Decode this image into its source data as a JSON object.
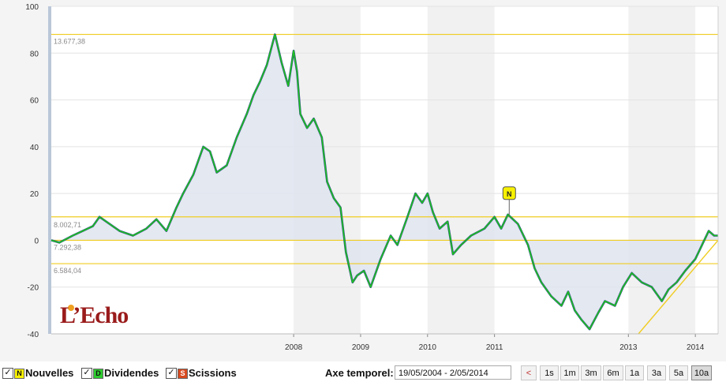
{
  "chart_data": {
    "type": "area",
    "y_ticks": [
      100,
      80,
      60,
      40,
      20,
      0,
      -20,
      -40
    ],
    "ylim": [
      -40,
      100
    ],
    "x_tick_labels": [
      {
        "label": "2008",
        "date": 2008.0
      },
      {
        "label": "2009",
        "date": 2009.0
      },
      {
        "label": "2010",
        "date": 2010.0
      },
      {
        "label": "2011",
        "date": 2011.0
      },
      {
        "label": "2013",
        "date": 2013.0
      },
      {
        "label": "2014",
        "date": 2014.0
      }
    ],
    "x_range": [
      2004.38,
      2014.34
    ],
    "reference_lines": [
      {
        "label": "13.677,38",
        "value": 88
      },
      {
        "label": "8.002,71",
        "value": 10
      },
      {
        "label": "7.292,38",
        "value": 0
      },
      {
        "label": "6.584,04",
        "value": -10
      }
    ],
    "series_points": [
      [
        2004.38,
        0
      ],
      [
        2004.5,
        -1
      ],
      [
        2004.7,
        2
      ],
      [
        2004.85,
        4
      ],
      [
        2005.0,
        6
      ],
      [
        2005.1,
        10
      ],
      [
        2005.25,
        7
      ],
      [
        2005.4,
        4
      ],
      [
        2005.6,
        2
      ],
      [
        2005.8,
        5
      ],
      [
        2005.95,
        9
      ],
      [
        2006.1,
        4
      ],
      [
        2006.25,
        14
      ],
      [
        2006.35,
        20
      ],
      [
        2006.5,
        28
      ],
      [
        2006.65,
        40
      ],
      [
        2006.75,
        38
      ],
      [
        2006.85,
        29
      ],
      [
        2007.0,
        32
      ],
      [
        2007.15,
        44
      ],
      [
        2007.3,
        54
      ],
      [
        2007.4,
        62
      ],
      [
        2007.5,
        68
      ],
      [
        2007.6,
        75
      ],
      [
        2007.72,
        88
      ],
      [
        2007.82,
        76
      ],
      [
        2007.92,
        66
      ],
      [
        2008.0,
        81
      ],
      [
        2008.05,
        72
      ],
      [
        2008.1,
        54
      ],
      [
        2008.2,
        48
      ],
      [
        2008.3,
        52
      ],
      [
        2008.42,
        44
      ],
      [
        2008.5,
        25
      ],
      [
        2008.6,
        18
      ],
      [
        2008.7,
        14
      ],
      [
        2008.78,
        -5
      ],
      [
        2008.88,
        -18
      ],
      [
        2008.95,
        -15
      ],
      [
        2009.05,
        -13
      ],
      [
        2009.15,
        -20
      ],
      [
        2009.3,
        -8
      ],
      [
        2009.45,
        2
      ],
      [
        2009.55,
        -2
      ],
      [
        2009.7,
        10
      ],
      [
        2009.82,
        20
      ],
      [
        2009.92,
        16
      ],
      [
        2010.0,
        20
      ],
      [
        2010.08,
        12
      ],
      [
        2010.18,
        5
      ],
      [
        2010.3,
        8
      ],
      [
        2010.38,
        -6
      ],
      [
        2010.5,
        -2
      ],
      [
        2010.65,
        2
      ],
      [
        2010.85,
        5
      ],
      [
        2011.0,
        10
      ],
      [
        2011.1,
        5
      ],
      [
        2011.2,
        11
      ],
      [
        2011.35,
        7
      ],
      [
        2011.5,
        -2
      ],
      [
        2011.6,
        -12
      ],
      [
        2011.7,
        -18
      ],
      [
        2011.85,
        -24
      ],
      [
        2012.0,
        -28
      ],
      [
        2012.1,
        -22
      ],
      [
        2012.2,
        -30
      ],
      [
        2012.3,
        -34
      ],
      [
        2012.42,
        -38
      ],
      [
        2012.55,
        -31
      ],
      [
        2012.65,
        -26
      ],
      [
        2012.8,
        -28
      ],
      [
        2012.92,
        -20
      ],
      [
        2013.05,
        -14
      ],
      [
        2013.2,
        -18
      ],
      [
        2013.35,
        -20
      ],
      [
        2013.5,
        -26
      ],
      [
        2013.6,
        -21
      ],
      [
        2013.72,
        -18
      ],
      [
        2013.85,
        -13
      ],
      [
        2014.0,
        -8
      ],
      [
        2014.1,
        -2
      ],
      [
        2014.2,
        4
      ],
      [
        2014.28,
        2
      ],
      [
        2014.34,
        2
      ]
    ],
    "annotations": [
      {
        "label": "N",
        "date": 2011.22,
        "value": 10
      }
    ],
    "trend_line": {
      "from": [
        2013.15,
        -40
      ],
      "to": [
        2014.34,
        0
      ]
    },
    "shaded_years": [
      2008,
      2010,
      2013
    ],
    "line_color": "#1ec41e",
    "line_shadow_color": "#2a3f8f",
    "fill_color": "#dfe4ef",
    "ref_line_color": "#f0cc20"
  },
  "logo": {
    "text": "L’Echo"
  },
  "legend": {
    "items": [
      {
        "check": "✓",
        "badge": "N",
        "label": "Nouvelles",
        "color": "#f7f000"
      },
      {
        "check": "✓",
        "badge": "D",
        "label": "Dividendes",
        "color": "#2ecc2e"
      },
      {
        "check": "✓",
        "badge": "S",
        "label": "Scissions",
        "color": "#d84a20"
      }
    ]
  },
  "time_axis": {
    "label": "Axe temporel:",
    "range": "19/05/2004 - 2/05/2014",
    "prev": "<",
    "buttons": [
      "1s",
      "1m",
      "3m",
      "6m",
      "1a",
      "3a",
      "5a",
      "10a"
    ],
    "active": "10a"
  }
}
